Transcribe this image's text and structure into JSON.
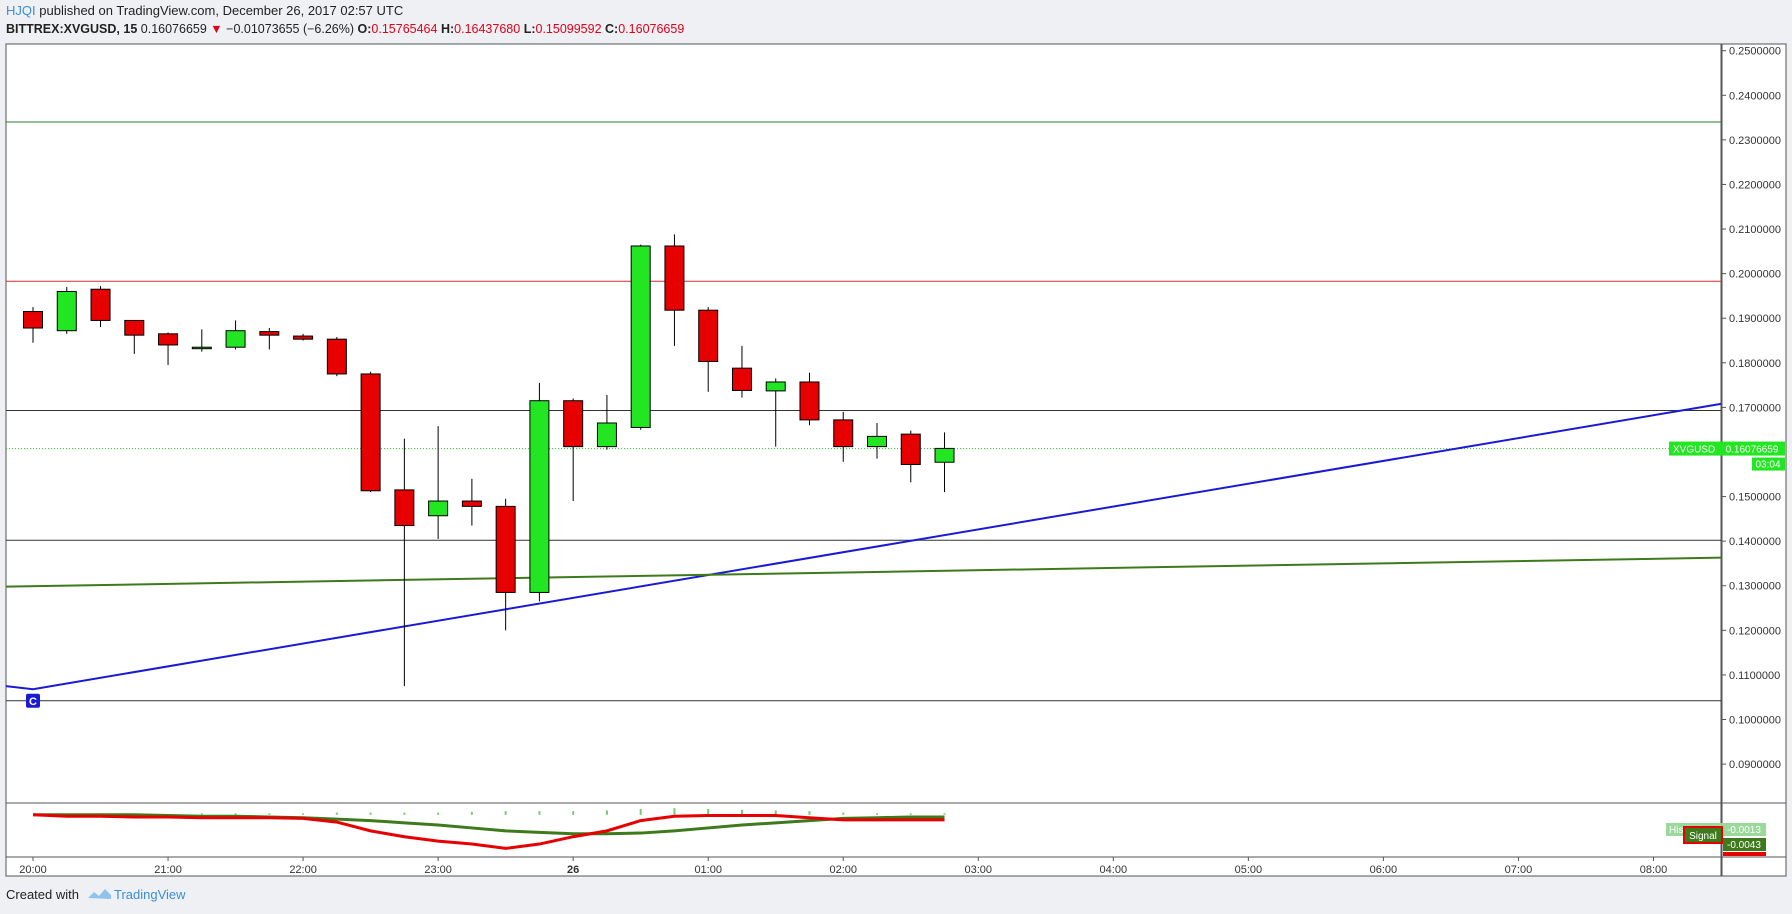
{
  "header": {
    "author": "HJQI",
    "published_text": "published on TradingView.com, December 26, 2017 02:57 UTC"
  },
  "legend": {
    "symbol": "BITTREX:XVGUSD, 15",
    "last": "0.16076659",
    "arrow": "▼",
    "change": "−0.01073655 (−6.26%)",
    "o_label": "O:",
    "o": "0.15765464",
    "h_label": "H:",
    "h": "0.16437680",
    "l_label": "L:",
    "l": "0.15099592",
    "c_label": "C:",
    "c": "0.16076659"
  },
  "footer": {
    "created_with": "Created with",
    "brand": "TradingView"
  },
  "chart_data": {
    "type": "candlestick",
    "symbol": "XVGUSD",
    "price_axis": {
      "ylim": [
        0.0815,
        0.2515
      ],
      "ticks": [
        "0.2500000",
        "0.2400000",
        "0.2300000",
        "0.2200000",
        "0.2100000",
        "0.2000000",
        "0.1900000",
        "0.1800000",
        "0.1700000",
        "0.1500000",
        "0.1400000",
        "0.1300000",
        "0.1200000",
        "0.1100000",
        "0.1000000",
        "0.0900000"
      ]
    },
    "time_axis": {
      "slots": 127,
      "ticks": [
        {
          "slot": 2,
          "label": "20:00"
        },
        {
          "slot": 12,
          "label": "21:00"
        },
        {
          "slot": 22,
          "label": "22:00"
        },
        {
          "slot": 32,
          "label": "23:00"
        },
        {
          "slot": 42,
          "label": "26"
        },
        {
          "slot": 52,
          "label": "01:00"
        },
        {
          "slot": 62,
          "label": "02:00"
        },
        {
          "slot": 72,
          "label": "03:00"
        },
        {
          "slot": 82,
          "label": "04:00"
        },
        {
          "slot": 92,
          "label": "05:00"
        },
        {
          "slot": 102,
          "label": "06:00"
        },
        {
          "slot": 112,
          "label": "07:00"
        },
        {
          "slot": 122,
          "label": "08:00"
        }
      ]
    },
    "candles": [
      {
        "slot": 2,
        "o": 0.1915,
        "h": 0.1925,
        "l": 0.1845,
        "c": 0.1878
      },
      {
        "slot": 4.5,
        "o": 0.1872,
        "h": 0.197,
        "l": 0.1865,
        "c": 0.196
      },
      {
        "slot": 7,
        "o": 0.1965,
        "h": 0.1972,
        "l": 0.188,
        "c": 0.1895
      },
      {
        "slot": 9.5,
        "o": 0.1895,
        "h": 0.1895,
        "l": 0.182,
        "c": 0.1862
      },
      {
        "slot": 12,
        "o": 0.1865,
        "h": 0.1868,
        "l": 0.1795,
        "c": 0.184
      },
      {
        "slot": 14.5,
        "o": 0.1833,
        "h": 0.1875,
        "l": 0.1825,
        "c": 0.1835
      },
      {
        "slot": 17,
        "o": 0.1835,
        "h": 0.1895,
        "l": 0.183,
        "c": 0.1872
      },
      {
        "slot": 19.5,
        "o": 0.187,
        "h": 0.1878,
        "l": 0.183,
        "c": 0.1862
      },
      {
        "slot": 22,
        "o": 0.186,
        "h": 0.1865,
        "l": 0.185,
        "c": 0.1853
      },
      {
        "slot": 24.5,
        "o": 0.1853,
        "h": 0.1858,
        "l": 0.177,
        "c": 0.1775
      },
      {
        "slot": 27,
        "o": 0.1775,
        "h": 0.178,
        "l": 0.151,
        "c": 0.1513
      },
      {
        "slot": 29.5,
        "o": 0.1515,
        "h": 0.163,
        "l": 0.1075,
        "c": 0.1435
      },
      {
        "slot": 32,
        "o": 0.1457,
        "h": 0.1658,
        "l": 0.1405,
        "c": 0.149
      },
      {
        "slot": 34.5,
        "o": 0.149,
        "h": 0.154,
        "l": 0.1435,
        "c": 0.1478
      },
      {
        "slot": 37,
        "o": 0.1478,
        "h": 0.1495,
        "l": 0.12,
        "c": 0.1285
      },
      {
        "slot": 39.5,
        "o": 0.1285,
        "h": 0.1755,
        "l": 0.1265,
        "c": 0.1715
      },
      {
        "slot": 42,
        "o": 0.1715,
        "h": 0.172,
        "l": 0.149,
        "c": 0.1612
      },
      {
        "slot": 44.5,
        "o": 0.1612,
        "h": 0.1728,
        "l": 0.1605,
        "c": 0.1665
      },
      {
        "slot": 47,
        "o": 0.1655,
        "h": 0.2065,
        "l": 0.165,
        "c": 0.2062
      },
      {
        "slot": 49.5,
        "o": 0.2062,
        "h": 0.2088,
        "l": 0.1838,
        "c": 0.1918
      },
      {
        "slot": 52,
        "o": 0.1918,
        "h": 0.1925,
        "l": 0.1735,
        "c": 0.1803
      },
      {
        "slot": 54.5,
        "o": 0.1788,
        "h": 0.1838,
        "l": 0.1722,
        "c": 0.1738
      },
      {
        "slot": 57,
        "o": 0.1737,
        "h": 0.1765,
        "l": 0.1612,
        "c": 0.1757
      },
      {
        "slot": 59.5,
        "o": 0.1757,
        "h": 0.1778,
        "l": 0.166,
        "c": 0.1672
      },
      {
        "slot": 62,
        "o": 0.1672,
        "h": 0.169,
        "l": 0.1578,
        "c": 0.1612
      },
      {
        "slot": 64.5,
        "o": 0.1612,
        "h": 0.1665,
        "l": 0.1585,
        "c": 0.1635
      },
      {
        "slot": 67,
        "o": 0.164,
        "h": 0.1648,
        "l": 0.1532,
        "c": 0.1572
      },
      {
        "slot": 69.5,
        "o": 0.1577,
        "h": 0.1644,
        "l": 0.151,
        "c": 0.1608
      }
    ],
    "horizontal_lines": [
      {
        "price": 0.234,
        "color": "#2e7d32"
      },
      {
        "price": 0.1983,
        "color": "#d32f2f"
      },
      {
        "price": 0.1693,
        "color": "#333333"
      },
      {
        "price": 0.1402,
        "color": "#333333"
      },
      {
        "price": 0.1042,
        "color": "#333333"
      }
    ],
    "current_price_line": {
      "price": 0.16076659,
      "color": "#22cc22"
    },
    "trend_lines": [
      {
        "color": "#1a1ad6",
        "points": [
          [
            0,
            0.1075
          ],
          [
            2,
            0.1068
          ],
          [
            127,
            0.1708
          ]
        ]
      },
      {
        "color": "#3e7a1c",
        "points": [
          [
            0,
            0.1298
          ],
          [
            127,
            0.1363
          ]
        ]
      }
    ],
    "price_label": {
      "symbol": "XVGUSD",
      "value": "0.16076659",
      "countdown": "03:04"
    },
    "marker": {
      "slot": 2,
      "price": 0.1042,
      "text": "C"
    },
    "macd": {
      "labels": {
        "hist": "Hist",
        "signal": "Signal",
        "hist_value": "-0.0013",
        "signal_value": "-0.0043"
      },
      "histogram_slots": [
        2,
        4.5,
        7,
        9.5,
        12,
        14.5,
        17,
        19.5,
        22,
        24.5,
        27,
        29.5,
        32,
        34.5,
        37,
        39.5,
        42,
        44.5,
        47,
        49.5,
        52,
        54.5,
        57,
        59.5,
        62,
        64.5,
        67,
        69.5
      ],
      "histogram": [
        0,
        0,
        0,
        0,
        0,
        0.0002,
        0.0002,
        0.0002,
        0.0002,
        0.0003,
        0.0003,
        0.0003,
        0.0003,
        0.0004,
        0.0005,
        0.0005,
        0.0005,
        0.0006,
        0.0008,
        0.0009,
        0.0008,
        0.0007,
        0.0006,
        0.0005,
        0.0003,
        0.0002,
        0.0002,
        0.0002
      ],
      "macd_line": [
        0,
        -0.0002,
        -0.0002,
        -0.0003,
        -0.0003,
        -0.0004,
        -0.0004,
        -0.0004,
        -0.0005,
        -0.001,
        -0.0022,
        -0.003,
        -0.0036,
        -0.004,
        -0.0046,
        -0.004,
        -0.003,
        -0.0022,
        -0.0008,
        -0.0002,
        -0.0001,
        -0.0001,
        -0.0001,
        -0.0004,
        -0.0007,
        -0.0007,
        -0.0007,
        -0.0007
      ],
      "signal_line": [
        0,
        0,
        0,
        0,
        -0.0001,
        -0.0002,
        -0.0002,
        -0.0003,
        -0.0004,
        -0.0006,
        -0.0008,
        -0.0011,
        -0.0014,
        -0.0018,
        -0.0022,
        -0.0024,
        -0.0026,
        -0.0026,
        -0.0025,
        -0.0022,
        -0.0018,
        -0.0014,
        -0.0011,
        -0.0008,
        -0.0005,
        -0.0004,
        -0.0003,
        -0.0003
      ],
      "ylim": [
        -0.0055,
        0.0012
      ]
    },
    "colors": {
      "up": "#22e622",
      "down": "#e60000",
      "macd": "#e60000",
      "signal": "#3e7a1c",
      "histogram": "#6fcf6f"
    }
  }
}
